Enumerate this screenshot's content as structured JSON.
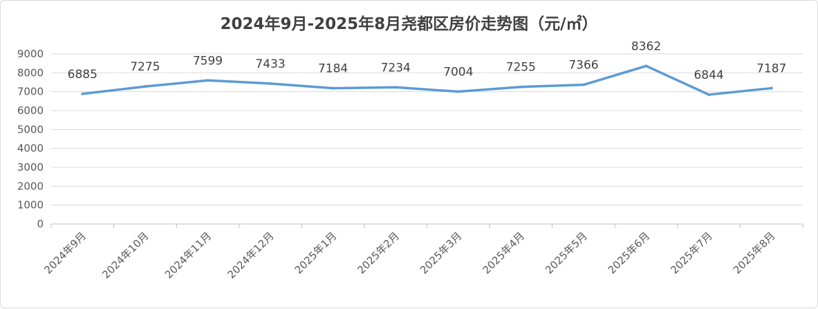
{
  "chart_data": {
    "type": "line",
    "title": "2024年9月-2025年8月尧都区房价走势图（元/㎡）",
    "categories": [
      "2024年9月",
      "2024年10月",
      "2024年11月",
      "2024年12月",
      "2025年1月",
      "2025年2月",
      "2025年3月",
      "2025年4月",
      "2025年5月",
      "2025年6月",
      "2025年7月",
      "2025年8月"
    ],
    "series": [
      {
        "values": [
          6885,
          7275,
          7599,
          7433,
          7184,
          7234,
          7004,
          7255,
          7366,
          8362,
          6844,
          7187
        ],
        "color": "#5b9bd5"
      }
    ],
    "ylim": [
      0,
      9000
    ],
    "yticks": [
      0,
      1000,
      2000,
      3000,
      4000,
      5000,
      6000,
      7000,
      8000,
      9000
    ],
    "grid": true,
    "data_labels": true,
    "legend": "none"
  }
}
